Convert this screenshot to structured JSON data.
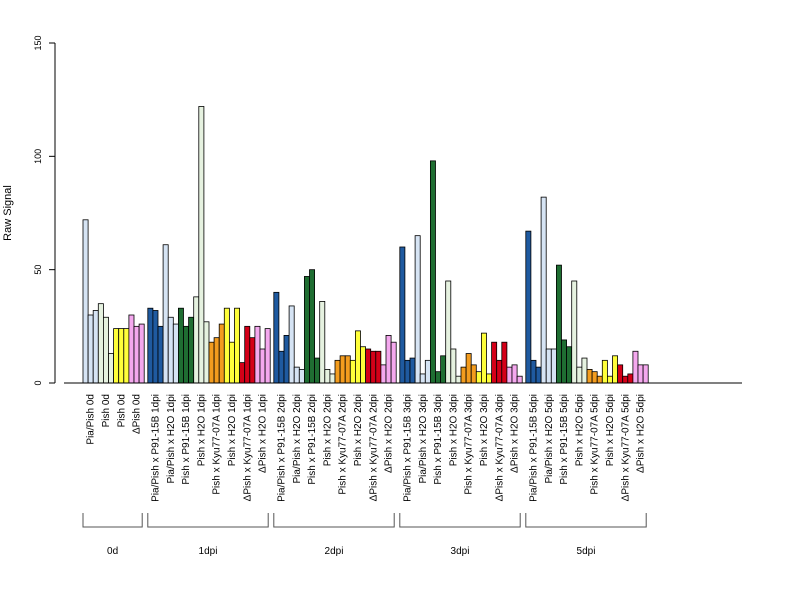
{
  "chart_data": {
    "type": "bar",
    "ylabel": "Raw Signal",
    "ylim": [
      0,
      150
    ],
    "yticks": [
      0,
      50,
      100,
      150
    ],
    "colors": {
      "light_blue": "#d6e4f4",
      "dark_blue": "#1f5aa0",
      "dark_green": "#1f6e32",
      "pale_green": "#e6f2e0",
      "orange": "#f39c1e",
      "yellow": "#ffff3a",
      "red": "#d40018",
      "pink": "#f4a8ee"
    },
    "groups": [
      {
        "label": "0d",
        "bars": [
          {
            "label": "Pia/Pish 0d",
            "color": "light_blue",
            "values": [
              72,
              30,
              32
            ]
          },
          {
            "label": "Pish 0d",
            "color": "pale_green",
            "values": [
              35,
              29,
              13
            ]
          },
          {
            "label": "Pish 0d",
            "color": "yellow",
            "values": [
              24,
              24,
              24
            ]
          },
          {
            "label": "ΔPish 0d",
            "color": "pink",
            "values": [
              30,
              25,
              26
            ]
          }
        ]
      },
      {
        "label": "1dpi",
        "bars": [
          {
            "label": "Pia/Pish x P91-15B 1dpi",
            "color": "dark_blue",
            "values": [
              33,
              32,
              25
            ]
          },
          {
            "label": "Pia/Pish x H2O 1dpi",
            "color": "light_blue",
            "values": [
              61,
              29,
              26
            ]
          },
          {
            "label": "Pish x P91-15B 1dpi",
            "color": "dark_green",
            "values": [
              33,
              25,
              29
            ]
          },
          {
            "label": "Pish x H2O 1dpi",
            "color": "pale_green",
            "values": [
              38,
              122,
              27
            ]
          },
          {
            "label": "Pish x Kyu77-07A 1dpi",
            "color": "orange",
            "values": [
              18,
              20,
              26
            ]
          },
          {
            "label": "Pish x H2O 1dpi",
            "color": "yellow",
            "values": [
              33,
              18,
              33
            ]
          },
          {
            "label": "ΔPish x Kyu77-07A 1dpi",
            "color": "red",
            "values": [
              9,
              25,
              20
            ]
          },
          {
            "label": "ΔPish x H2O 1dpi",
            "color": "pink",
            "values": [
              25,
              15,
              24
            ]
          }
        ]
      },
      {
        "label": "2dpi",
        "bars": [
          {
            "label": "Pia/Pish x P91-15B 2dpi",
            "color": "dark_blue",
            "values": [
              40,
              14,
              21
            ]
          },
          {
            "label": "Pia/Pish x H2O 2dpi",
            "color": "light_blue",
            "values": [
              34,
              7,
              6
            ]
          },
          {
            "label": "Pish x P91-15B 2dpi",
            "color": "dark_green",
            "values": [
              47,
              50,
              11
            ]
          },
          {
            "label": "Pish x H2O 2dpi",
            "color": "pale_green",
            "values": [
              36,
              6,
              4
            ]
          },
          {
            "label": "Pish x Kyu77-07A 2dpi",
            "color": "orange",
            "values": [
              10,
              12,
              12
            ]
          },
          {
            "label": "Pish x H2O 2dpi",
            "color": "yellow",
            "values": [
              10,
              23,
              16
            ]
          },
          {
            "label": "ΔPish x Kyu77-07A 2dpi",
            "color": "red",
            "values": [
              15,
              14,
              14
            ]
          },
          {
            "label": "ΔPish x H2O 2dpi",
            "color": "pink",
            "values": [
              8,
              21,
              18
            ]
          }
        ]
      },
      {
        "label": "3dpi",
        "bars": [
          {
            "label": "Pia/Pish x P91-15B 3dpi",
            "color": "dark_blue",
            "values": [
              60,
              10,
              11
            ]
          },
          {
            "label": "Pia/Pish x H2O 3dpi",
            "color": "light_blue",
            "values": [
              65,
              4,
              10
            ]
          },
          {
            "label": "Pish x P91-15B 3dpi",
            "color": "dark_green",
            "values": [
              98,
              5,
              12
            ]
          },
          {
            "label": "Pish x H2O 3dpi",
            "color": "pale_green",
            "values": [
              45,
              15,
              3
            ]
          },
          {
            "label": "Pish x Kyu77-07A 3dpi",
            "color": "orange",
            "values": [
              7,
              13,
              8
            ]
          },
          {
            "label": "Pish x H2O 3dpi",
            "color": "yellow",
            "values": [
              5,
              22,
              4
            ]
          },
          {
            "label": "ΔPish x Kyu77-07A 3dpi",
            "color": "red",
            "values": [
              18,
              10,
              18
            ]
          },
          {
            "label": "ΔPish x H2O 3dpi",
            "color": "pink",
            "values": [
              7,
              8,
              3
            ]
          }
        ]
      },
      {
        "label": "5dpi",
        "bars": [
          {
            "label": "Pia/Pish x P91-15B 5dpi",
            "color": "dark_blue",
            "values": [
              67,
              10,
              7
            ]
          },
          {
            "label": "Pia/Pish x H2O 5dpi",
            "color": "light_blue",
            "values": [
              82,
              15,
              15
            ]
          },
          {
            "label": "Pish x P91-15B 5dpi",
            "color": "dark_green",
            "values": [
              52,
              19,
              16
            ]
          },
          {
            "label": "Pish x H2O 5dpi",
            "color": "pale_green",
            "values": [
              45,
              7,
              11
            ]
          },
          {
            "label": "Pish x Kyu77-07A 5dpi",
            "color": "orange",
            "values": [
              6,
              5,
              3
            ]
          },
          {
            "label": "Pish x H2O 5dpi",
            "color": "yellow",
            "values": [
              10,
              3,
              12
            ]
          },
          {
            "label": "ΔPish x Kyu77-07A 5dpi",
            "color": "red",
            "values": [
              8,
              3,
              4
            ]
          },
          {
            "label": "ΔPish x H2O 5dpi",
            "color": "pink",
            "values": [
              14,
              8,
              8
            ]
          }
        ]
      }
    ]
  }
}
